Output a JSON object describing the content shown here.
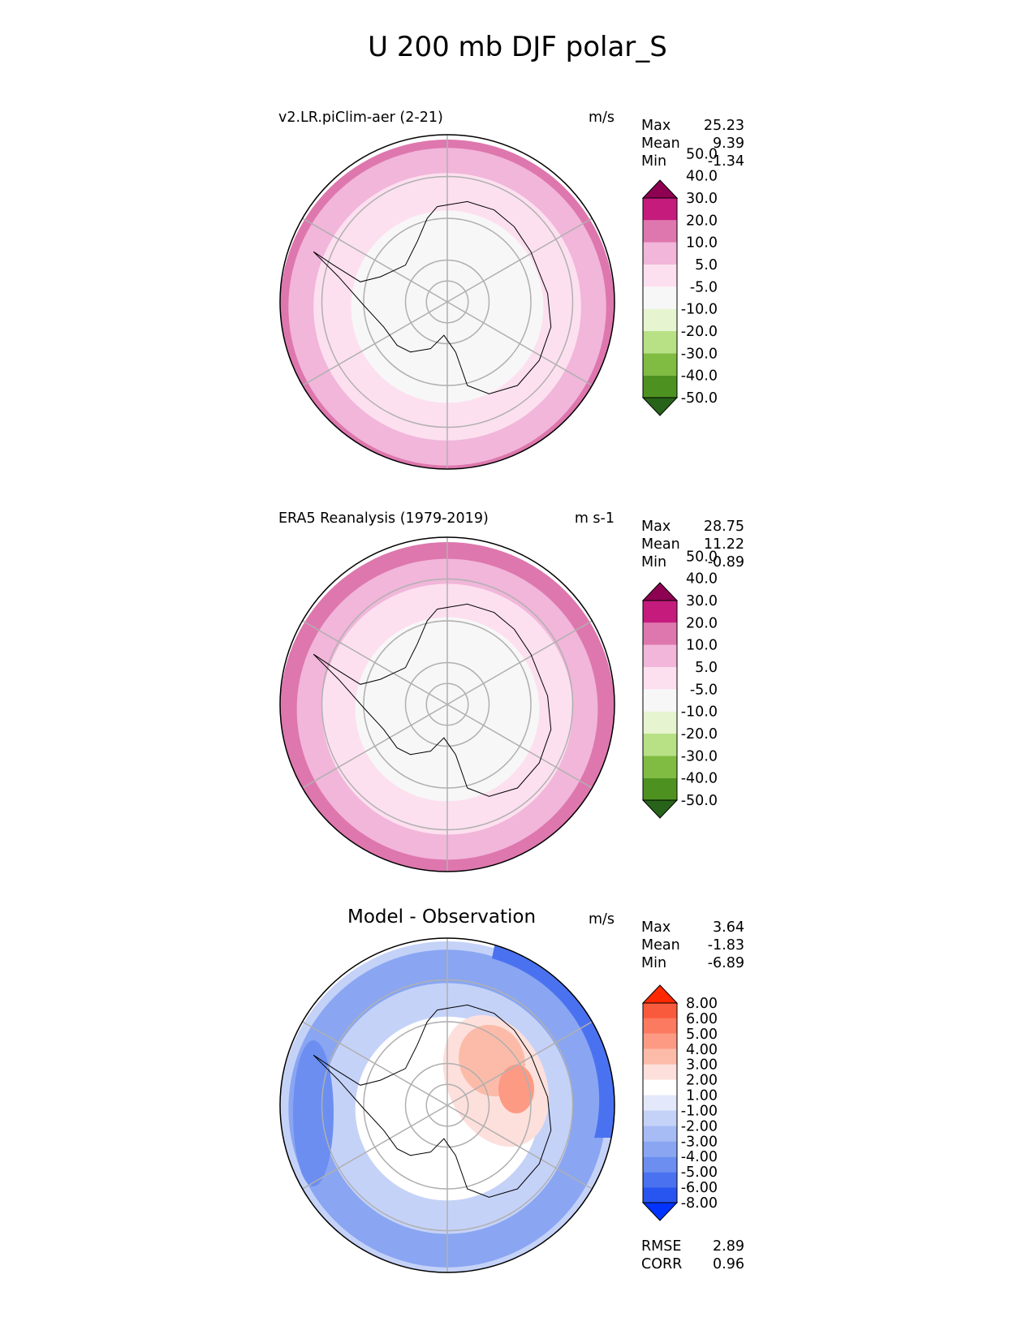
{
  "chart_data": [
    {
      "type": "heatmap",
      "projection": "south polar stereographic",
      "title": "U 200 mb DJF polar_S",
      "panel_title": "v2.LR.piClim-aer (2-21)",
      "units": "m/s",
      "stats": {
        "max": "25.23",
        "mean": "9.39",
        "min": "-1.34"
      },
      "colorbar_levels": [
        "-50.0",
        "-40.0",
        "-30.0",
        "-20.0",
        "-10.0",
        "-5.0",
        "5.0",
        "10.0",
        "20.0",
        "30.0",
        "40.0",
        "50.0"
      ],
      "colorbar_colors": [
        "#276419",
        "#4d9221",
        "#7fbc41",
        "#b8e186",
        "#e6f5d0",
        "#f7f7f7",
        "#fde0ef",
        "#f1b6da",
        "#de77ae",
        "#c51b7d",
        "#8e0152"
      ],
      "zonal_bands": [
        {
          "from_lat": -90,
          "to_lat": -67,
          "range": "-5 to 5"
        },
        {
          "from_lat": -67,
          "to_lat": -58,
          "range": "5 to 10"
        },
        {
          "from_lat": -58,
          "to_lat": -52,
          "range": "10 to 20"
        },
        {
          "from_lat": -52,
          "to_lat": -50,
          "range": "20 to 30"
        }
      ]
    },
    {
      "type": "heatmap",
      "projection": "south polar stereographic",
      "panel_title": "ERA5 Reanalysis (1979-2019)",
      "units": "m s-1",
      "stats": {
        "max": "28.75",
        "mean": "11.22",
        "min": "-0.89"
      },
      "colorbar_levels": [
        "-50.0",
        "-40.0",
        "-30.0",
        "-20.0",
        "-10.0",
        "-5.0",
        "5.0",
        "10.0",
        "20.0",
        "30.0",
        "40.0",
        "50.0"
      ],
      "colorbar_colors": [
        "#276419",
        "#4d9221",
        "#7fbc41",
        "#b8e186",
        "#e6f5d0",
        "#f7f7f7",
        "#fde0ef",
        "#f1b6da",
        "#de77ae",
        "#c51b7d",
        "#8e0152"
      ],
      "zonal_bands": [
        {
          "from_lat": -90,
          "to_lat": -68,
          "range": "-5 to 5"
        },
        {
          "from_lat": -68,
          "to_lat": -60,
          "range": "5 to 10"
        },
        {
          "from_lat": -60,
          "to_lat": -54,
          "range": "10 to 20"
        },
        {
          "from_lat": -54,
          "to_lat": -50,
          "range": "20 to 30"
        }
      ]
    },
    {
      "type": "heatmap",
      "projection": "south polar stereographic",
      "panel_title": "Model - Observation",
      "units": "m/s",
      "stats": {
        "max": "3.64",
        "mean": "-1.83",
        "min": "-6.89"
      },
      "rmse": "2.89",
      "corr": "0.96",
      "metric_labels": {
        "rmse": "RMSE",
        "corr": "CORR"
      },
      "colorbar_levels": [
        "-8.00",
        "-6.00",
        "-5.00",
        "-4.00",
        "-3.00",
        "-2.00",
        "-1.00",
        "1.00",
        "2.00",
        "3.00",
        "4.00",
        "5.00",
        "6.00",
        "8.00"
      ],
      "colorbar_colors": [
        "#0033ff",
        "#2855f0",
        "#4a72f0",
        "#6b8ef0",
        "#8aa6f2",
        "#a7bcf5",
        "#c5d2f8",
        "#e3e9fb",
        "#ffffff",
        "#fde0dc",
        "#fcbba8",
        "#fc9a84",
        "#fb7a60",
        "#fa5a3c",
        "#ff2800"
      ],
      "zonal_bands": [
        {
          "from_lat": -90,
          "to_lat": -68,
          "range": "-1 to 1 (with 1 to 3 sector)"
        },
        {
          "from_lat": -68,
          "to_lat": -60,
          "range": "-3 to -1"
        },
        {
          "from_lat": -60,
          "to_lat": -52,
          "range": "-5 to -3"
        },
        {
          "from_lat": -52,
          "to_lat": -50,
          "range": "-3 to -1"
        }
      ]
    }
  ],
  "labels": {
    "max": "Max",
    "mean": "Mean",
    "min": "Min"
  },
  "map_colors": {
    "grid": "#b0b0b0",
    "coast": "#000000",
    "border": "#000000"
  }
}
